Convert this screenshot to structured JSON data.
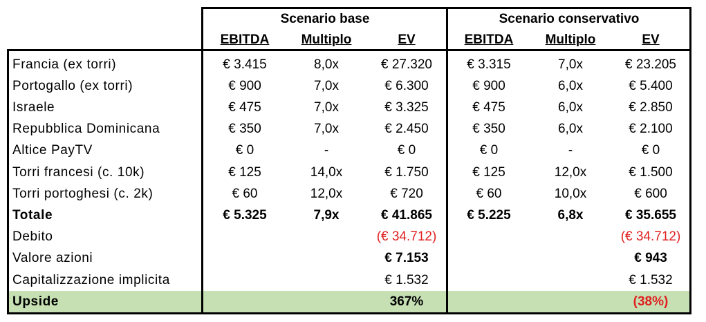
{
  "headers": {
    "scenario_base": "Scenario base",
    "scenario_conservativo": "Scenario conservativo",
    "base_cols": [
      "EBITDA",
      "Multiplo",
      "EV"
    ],
    "cons_cols": [
      "EBITDA",
      "Multiplo",
      "EV"
    ]
  },
  "rows": [
    {
      "label": "Francia (ex torri)",
      "cells": [
        "€ 3.415",
        "8,0x",
        "€ 27.320",
        "€ 3.315",
        "7,0x",
        "€ 23.205"
      ]
    },
    {
      "label": "Portogallo (ex torri)",
      "cells": [
        "€ 900",
        "7,0x",
        "€ 6.300",
        "€ 900",
        "6,0x",
        "€ 5.400"
      ]
    },
    {
      "label": "Israele",
      "cells": [
        "€ 475",
        "7,0x",
        "€ 3.325",
        "€ 475",
        "6,0x",
        "€ 2.850"
      ]
    },
    {
      "label": "Repubblica Dominicana",
      "cells": [
        "€ 350",
        "7,0x",
        "€ 2.450",
        "€ 350",
        "6,0x",
        "€ 2.100"
      ]
    },
    {
      "label": "Altice PayTV",
      "cells": [
        "€ 0",
        "-",
        "€ 0",
        "€ 0",
        "-",
        "€ 0"
      ]
    },
    {
      "label": "Torri francesi (c. 10k)",
      "cells": [
        "€ 125",
        "14,0x",
        "€ 1.750",
        "€ 125",
        "12,0x",
        "€ 1.500"
      ]
    },
    {
      "label": "Torri portoghesi (c. 2k)",
      "cells": [
        "€ 60",
        "12,0x",
        "€ 720",
        "€ 60",
        "10,0x",
        "€ 600"
      ]
    },
    {
      "label": "Totale",
      "cells": [
        "€ 5.325",
        "7,9x",
        "€ 41.865",
        "€ 5.225",
        "6,8x",
        "€ 35.655"
      ]
    },
    {
      "label": "Debito",
      "cells": [
        "",
        "",
        "(€ 34.712)",
        "",
        "",
        "(€ 34.712)"
      ]
    },
    {
      "label": "Valore azioni",
      "cells": [
        "",
        "",
        "€ 7.153",
        "",
        "",
        "€ 943"
      ]
    },
    {
      "label": "Capitalizzazione implicita",
      "cells": [
        "",
        "",
        "€ 1.532",
        "",
        "",
        "€ 1.532"
      ]
    },
    {
      "label": "Upside",
      "cells": [
        "",
        "",
        "367%",
        "",
        "",
        "(38%)"
      ]
    }
  ],
  "colors": {
    "negative": "#e02020",
    "upside_fill": "#c6e0b4"
  }
}
